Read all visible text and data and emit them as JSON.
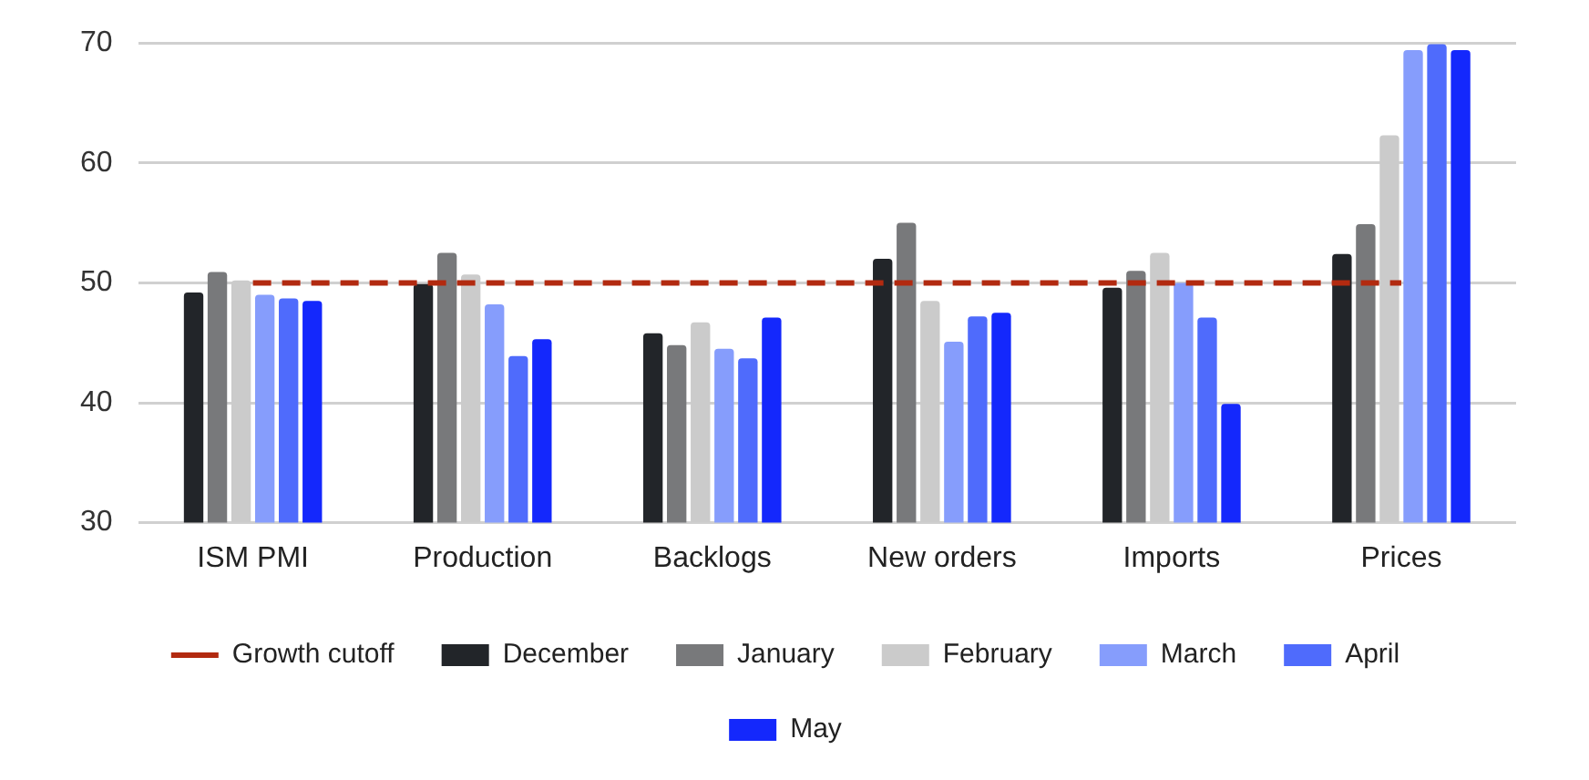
{
  "chart_data": {
    "type": "bar",
    "categories": [
      "ISM PMI",
      "Production",
      "Backlogs",
      "New orders",
      "Imports",
      "Prices"
    ],
    "series": [
      {
        "name": "December",
        "color": "#222529",
        "values": [
          49.2,
          49.9,
          45.8,
          52.0,
          49.6,
          52.4
        ]
      },
      {
        "name": "January",
        "color": "#78797b",
        "values": [
          50.9,
          52.5,
          44.8,
          55.0,
          51.0,
          54.9
        ]
      },
      {
        "name": "February",
        "color": "#cbcbcb",
        "values": [
          50.2,
          50.7,
          46.7,
          48.5,
          52.5,
          62.3
        ]
      },
      {
        "name": "March",
        "color": "#869dfc",
        "values": [
          49.0,
          48.2,
          44.5,
          45.1,
          50.0,
          69.4
        ]
      },
      {
        "name": "April",
        "color": "#4f6bfc",
        "values": [
          48.7,
          43.9,
          43.7,
          47.2,
          47.1,
          69.9
        ]
      },
      {
        "name": "May",
        "color": "#1428fc",
        "values": [
          48.5,
          45.3,
          47.1,
          47.5,
          39.9,
          69.4
        ]
      },
      {
        "name": "Growth cutoff",
        "type": "line",
        "color": "#b22a10",
        "line_style": "dashed",
        "marker": "none",
        "values": [
          50,
          50,
          50,
          50,
          50,
          50
        ]
      }
    ],
    "ylim": [
      30,
      70
    ],
    "yticks": [
      30,
      40,
      50,
      60,
      70
    ],
    "grid": "y",
    "legend": "bottom"
  }
}
